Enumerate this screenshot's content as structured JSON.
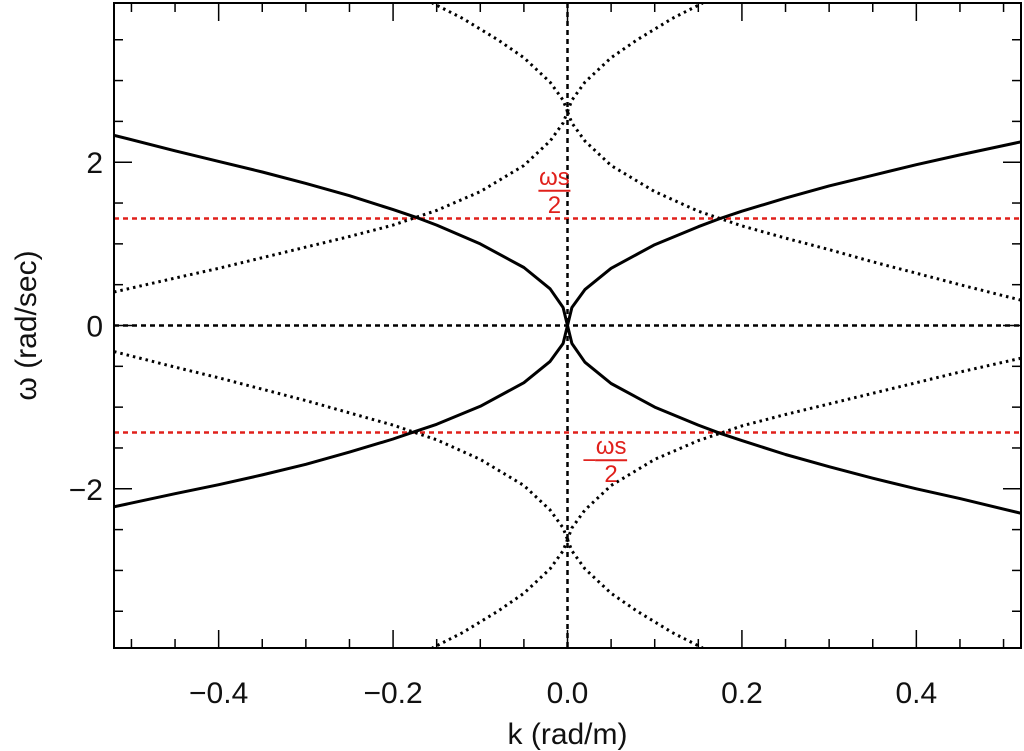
{
  "chart_data": {
    "type": "line",
    "title": "",
    "xlabel": "k (rad/m)",
    "ylabel": "ω (rad/sec)",
    "xlim": [
      -0.52,
      0.52
    ],
    "ylim": [
      -3.95,
      3.95
    ],
    "x_ticks": [
      -0.4,
      -0.2,
      0.0,
      0.2,
      0.4
    ],
    "x_tick_labels": [
      "−0.4",
      "−0.2",
      "0.0",
      "0.2",
      "0.4"
    ],
    "y_ticks": [
      -2,
      0,
      2
    ],
    "y_tick_labels": [
      "−2",
      "0",
      "2"
    ],
    "grid": false,
    "legend": "none",
    "series": [
      {
        "style": "solid",
        "color": "#000000",
        "x": [
          0.52,
          0.45,
          0.4,
          0.35,
          0.3,
          0.25,
          0.2,
          0.175,
          0.15,
          0.1,
          0.05,
          0.02,
          0.005,
          0.0
        ],
        "y": [
          2.25,
          2.09,
          1.97,
          1.84,
          1.71,
          1.56,
          1.4,
          1.31,
          1.21,
          0.99,
          0.7,
          0.44,
          0.22,
          0.0
        ]
      },
      {
        "style": "solid",
        "color": "#000000",
        "x": [
          -0.52,
          -0.45,
          -0.4,
          -0.35,
          -0.3,
          -0.25,
          -0.2,
          -0.175,
          -0.15,
          -0.1,
          -0.05,
          -0.02,
          -0.005,
          0.0
        ],
        "y": [
          2.33,
          2.14,
          2.01,
          1.88,
          1.74,
          1.59,
          1.42,
          1.33,
          1.23,
          1.0,
          0.71,
          0.45,
          0.22,
          0.0
        ]
      },
      {
        "style": "solid",
        "color": "#000000",
        "x": [
          0.52,
          0.45,
          0.4,
          0.35,
          0.3,
          0.25,
          0.2,
          0.175,
          0.15,
          0.1,
          0.05,
          0.02,
          0.005,
          0.0
        ],
        "y": [
          -2.3,
          -2.12,
          -2.0,
          -1.87,
          -1.73,
          -1.58,
          -1.41,
          -1.32,
          -1.22,
          -1.0,
          -0.71,
          -0.45,
          -0.22,
          0.0
        ]
      },
      {
        "style": "solid",
        "color": "#000000",
        "x": [
          -0.52,
          -0.45,
          -0.4,
          -0.35,
          -0.3,
          -0.25,
          -0.2,
          -0.175,
          -0.15,
          -0.1,
          -0.05,
          -0.02,
          -0.005,
          0.0
        ],
        "y": [
          -2.22,
          -2.06,
          -1.95,
          -1.83,
          -1.7,
          -1.55,
          -1.39,
          -1.3,
          -1.21,
          -0.99,
          -0.7,
          -0.44,
          -0.22,
          0.0
        ]
      },
      {
        "style": "dotted",
        "color": "#000000",
        "x": [
          0.52,
          0.45,
          0.4,
          0.35,
          0.3,
          0.25,
          0.2,
          0.175,
          0.15,
          0.1,
          0.05,
          0.02,
          0.005,
          0.0
        ],
        "y": [
          0.31,
          0.5,
          0.64,
          0.78,
          0.93,
          1.07,
          1.22,
          1.31,
          1.4,
          1.64,
          1.96,
          2.26,
          2.48,
          2.62
        ]
      },
      {
        "style": "dotted",
        "color": "#000000",
        "x": [
          -0.52,
          -0.45,
          -0.4,
          -0.35,
          -0.3,
          -0.25,
          -0.2,
          -0.175,
          -0.15,
          -0.1,
          -0.05,
          -0.02,
          -0.005,
          0.0
        ],
        "y": [
          0.41,
          0.58,
          0.7,
          0.83,
          0.96,
          1.09,
          1.23,
          1.32,
          1.41,
          1.64,
          1.96,
          2.26,
          2.48,
          2.62
        ]
      },
      {
        "style": "dotted",
        "color": "#000000",
        "x": [
          0.52,
          0.45,
          0.4,
          0.35,
          0.3,
          0.25,
          0.2,
          0.175,
          0.15,
          0.1,
          0.05,
          0.02,
          0.005,
          0.0
        ],
        "y": [
          -0.4,
          -0.57,
          -0.7,
          -0.83,
          -0.96,
          -1.09,
          -1.23,
          -1.32,
          -1.41,
          -1.64,
          -1.96,
          -2.26,
          -2.48,
          -2.62
        ]
      },
      {
        "style": "dotted",
        "color": "#000000",
        "x": [
          -0.52,
          -0.45,
          -0.4,
          -0.35,
          -0.3,
          -0.25,
          -0.2,
          -0.175,
          -0.15,
          -0.1,
          -0.05,
          -0.02,
          -0.005,
          0.0
        ],
        "y": [
          -0.32,
          -0.51,
          -0.64,
          -0.78,
          -0.92,
          -1.07,
          -1.22,
          -1.31,
          -1.4,
          -1.64,
          -1.96,
          -2.26,
          -2.48,
          -2.62
        ]
      },
      {
        "style": "dotted",
        "color": "#000000",
        "x": [
          0.0,
          0.005,
          0.02,
          0.05,
          0.08,
          0.12,
          0.155
        ],
        "y": [
          2.62,
          2.76,
          2.98,
          3.28,
          3.5,
          3.76,
          3.95
        ]
      },
      {
        "style": "dotted",
        "color": "#000000",
        "x": [
          0.0,
          -0.005,
          -0.02,
          -0.05,
          -0.08,
          -0.12,
          -0.155
        ],
        "y": [
          2.62,
          2.76,
          2.98,
          3.28,
          3.5,
          3.76,
          3.95
        ]
      },
      {
        "style": "dotted",
        "color": "#000000",
        "x": [
          0.0,
          0.005,
          0.02,
          0.05,
          0.08,
          0.12,
          0.155
        ],
        "y": [
          -2.62,
          -2.76,
          -2.98,
          -3.28,
          -3.5,
          -3.76,
          -3.95
        ]
      },
      {
        "style": "dotted",
        "color": "#000000",
        "x": [
          0.0,
          -0.005,
          -0.02,
          -0.05,
          -0.08,
          -0.12,
          -0.155
        ],
        "y": [
          -2.62,
          -2.76,
          -2.98,
          -3.28,
          -3.5,
          -3.76,
          -3.95
        ]
      }
    ],
    "reference_lines": [
      {
        "orientation": "horizontal",
        "value": 1.31,
        "style": "dashed",
        "color": "#e0201b"
      },
      {
        "orientation": "horizontal",
        "value": -1.31,
        "style": "dashed",
        "color": "#e0201b"
      },
      {
        "orientation": "horizontal",
        "value": 0,
        "style": "dashed",
        "color": "#000000"
      },
      {
        "orientation": "vertical",
        "value": 0,
        "style": "dashed",
        "color": "#000000"
      }
    ],
    "annotations": [
      {
        "numerator": "ωs",
        "denominator": "2",
        "sign": "",
        "x": -0.015,
        "y": 1.65,
        "color": "#e0201b"
      },
      {
        "numerator": "ωs",
        "denominator": "2",
        "sign": "−",
        "x": 0.05,
        "y": -1.65,
        "color": "#e0201b"
      }
    ]
  }
}
